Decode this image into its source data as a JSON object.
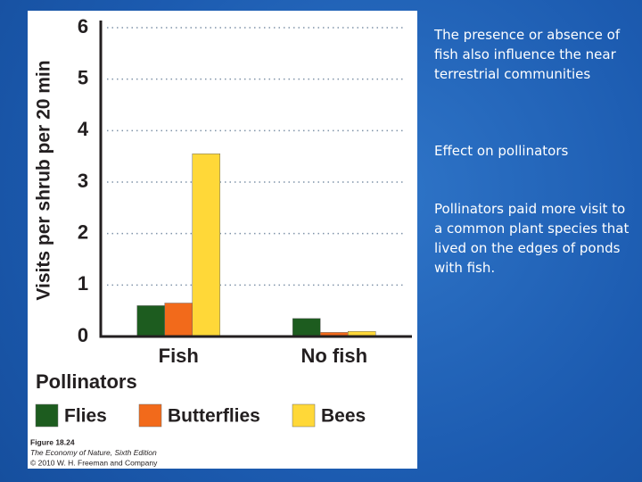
{
  "chart_data": {
    "type": "bar",
    "y_label": "Visits per shrub per 20 min",
    "categories": [
      "Fish",
      "No fish"
    ],
    "series": [
      {
        "name": "Flies",
        "color": "#1d5c1f",
        "values": [
          0.6,
          0.35
        ]
      },
      {
        "name": "Butterflies",
        "color": "#f26a1b",
        "values": [
          0.65,
          0.08
        ]
      },
      {
        "name": "Bees",
        "color": "#ffd838",
        "values": [
          3.55,
          0.1
        ]
      }
    ],
    "legend_title": "Pollinators",
    "ylim": [
      0,
      6
    ],
    "yticks": [
      0,
      1,
      2,
      3,
      4,
      5,
      6
    ],
    "grid": true,
    "caption": [
      "Figure 18.24",
      "The Economy of Nature, Sixth Edition",
      "© 2010 W. H. Freeman and Company"
    ]
  },
  "slide": {
    "heading": "The presence or absence of fish also influence the near terrestrial communities",
    "subheading": "Effect on pollinators",
    "body": "Pollinators paid more visit to a common plant species that lived on the edges of ponds with fish."
  }
}
